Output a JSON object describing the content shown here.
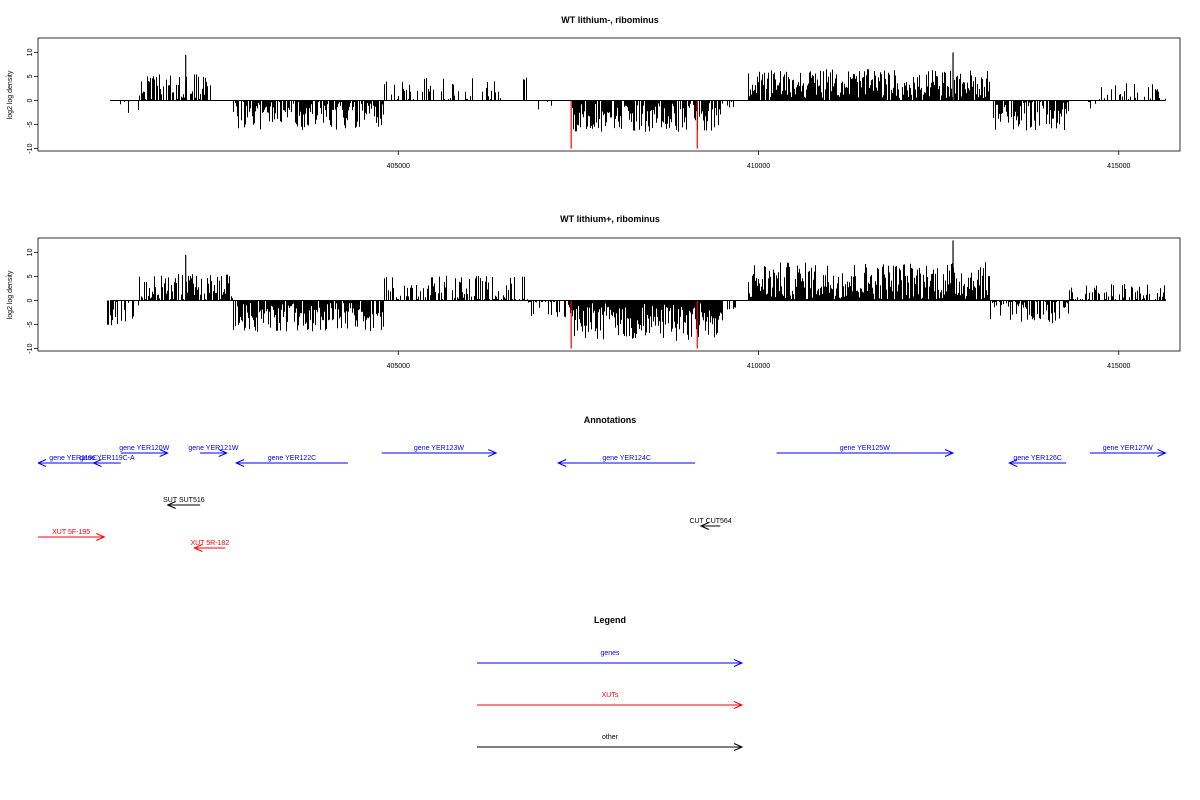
{
  "chart_data": [
    {
      "type": "bar",
      "title": "WT lithium-, ribominus",
      "ylabel": "log2 log density",
      "xlim": [
        400000,
        415850
      ],
      "ylim": [
        -10.5,
        13
      ],
      "x_ticks": [
        405000,
        410000,
        415000
      ],
      "y_ticks": [
        -10,
        -5,
        0,
        5,
        10
      ],
      "segments": [
        {
          "start": 400950,
          "end": 401400,
          "sign": -1,
          "mean": 1.2,
          "amp": 1.5,
          "density": 0.2
        },
        {
          "start": 401400,
          "end": 402400,
          "sign": 1,
          "mean": 2.5,
          "amp": 3,
          "density": 0.7
        },
        {
          "start": 402700,
          "end": 404800,
          "sign": -1,
          "mean": 3.2,
          "amp": 3,
          "density": 0.8
        },
        {
          "start": 404800,
          "end": 406800,
          "sign": 1,
          "mean": 1.8,
          "amp": 3,
          "density": 0.4
        },
        {
          "start": 406800,
          "end": 407400,
          "sign": -1,
          "mean": 1.0,
          "amp": 1.5,
          "density": 0.15
        },
        {
          "start": 407400,
          "end": 409500,
          "sign": -1,
          "mean": 3.5,
          "amp": 3,
          "density": 0.85
        },
        {
          "start": 409500,
          "end": 409850,
          "sign": -1,
          "mean": 0.8,
          "amp": 1,
          "density": 0.1
        },
        {
          "start": 409850,
          "end": 413200,
          "sign": 1,
          "mean": 3.5,
          "amp": 3,
          "density": 0.95
        },
        {
          "start": 413250,
          "end": 414300,
          "sign": -1,
          "mean": 3.2,
          "amp": 3,
          "density": 0.75
        },
        {
          "start": 414300,
          "end": 414700,
          "sign": -1,
          "mean": 0.7,
          "amp": 1,
          "density": 0.1
        },
        {
          "start": 414700,
          "end": 415650,
          "sign": 1,
          "mean": 1.8,
          "amp": 2,
          "density": 0.4
        }
      ],
      "spikes": [
        {
          "x": 402050,
          "y": 9.5,
          "color": "#000000"
        },
        {
          "x": 412700,
          "y": 10,
          "color": "#000000"
        },
        {
          "x": 407400,
          "y": -10,
          "color": "#ff0000"
        },
        {
          "x": 409150,
          "y": -10,
          "color": "#ff0000"
        }
      ],
      "baseline_range": [
        401000,
        415650
      ]
    },
    {
      "type": "bar",
      "title": "WT lithium+, ribominus",
      "ylabel": "log2 log density",
      "xlim": [
        400000,
        415850
      ],
      "ylim": [
        -10.5,
        13
      ],
      "x_ticks": [
        405000,
        410000,
        415000
      ],
      "y_ticks": [
        -10,
        -5,
        0,
        5,
        10
      ],
      "segments": [
        {
          "start": 400950,
          "end": 401400,
          "sign": -1,
          "mean": 2.5,
          "amp": 3,
          "density": 0.6
        },
        {
          "start": 401400,
          "end": 402700,
          "sign": 1,
          "mean": 2.5,
          "amp": 3,
          "density": 0.75
        },
        {
          "start": 402700,
          "end": 404800,
          "sign": -1,
          "mean": 3.5,
          "amp": 3,
          "density": 0.9
        },
        {
          "start": 404800,
          "end": 406800,
          "sign": 1,
          "mean": 2.3,
          "amp": 3,
          "density": 0.7
        },
        {
          "start": 406800,
          "end": 407400,
          "sign": -1,
          "mean": 1.5,
          "amp": 2,
          "density": 0.4
        },
        {
          "start": 407400,
          "end": 409500,
          "sign": -1,
          "mean": 4.5,
          "amp": 4,
          "density": 1.0
        },
        {
          "start": 409500,
          "end": 409850,
          "sign": -1,
          "mean": 1.0,
          "amp": 1,
          "density": 0.2
        },
        {
          "start": 409850,
          "end": 413200,
          "sign": 1,
          "mean": 4.0,
          "amp": 4,
          "density": 1.0
        },
        {
          "start": 413200,
          "end": 414300,
          "sign": -1,
          "mean": 2.0,
          "amp": 3,
          "density": 0.7
        },
        {
          "start": 414300,
          "end": 415650,
          "sign": 1,
          "mean": 1.5,
          "amp": 2,
          "density": 0.5
        }
      ],
      "spikes": [
        {
          "x": 402050,
          "y": 9.5,
          "color": "#000000"
        },
        {
          "x": 412700,
          "y": 12.5,
          "color": "#000000"
        },
        {
          "x": 407400,
          "y": -10,
          "color": "#ff0000"
        },
        {
          "x": 409150,
          "y": -10,
          "color": "#ff0000"
        }
      ],
      "baseline_range": [
        401000,
        415650
      ]
    }
  ],
  "annotations": {
    "title": "Annotations",
    "xlim": [
      400000,
      415850
    ],
    "features": [
      {
        "label": "gene YER119C",
        "start": 400000,
        "end": 400980,
        "strand": "-",
        "color": "#0000ff",
        "row": 1
      },
      {
        "label": "gene YER119C-A",
        "start": 400770,
        "end": 401150,
        "strand": "-",
        "color": "#0000ff",
        "row": 1
      },
      {
        "label": "gene YER120W",
        "start": 401150,
        "end": 401800,
        "strand": "+",
        "color": "#0000ff",
        "row": 0
      },
      {
        "label": "gene YER121W",
        "start": 402250,
        "end": 402620,
        "strand": "+",
        "color": "#0000ff",
        "row": 0
      },
      {
        "label": "gene YER122C",
        "start": 402750,
        "end": 404300,
        "strand": "-",
        "color": "#0000ff",
        "row": 1
      },
      {
        "label": "gene YER123W",
        "start": 404770,
        "end": 406360,
        "strand": "+",
        "color": "#0000ff",
        "row": 0
      },
      {
        "label": "gene YER124C",
        "start": 407220,
        "end": 409120,
        "strand": "-",
        "color": "#0000ff",
        "row": 1
      },
      {
        "label": "gene YER125W",
        "start": 410250,
        "end": 412700,
        "strand": "+",
        "color": "#0000ff",
        "row": 0
      },
      {
        "label": "gene YER126C",
        "start": 413480,
        "end": 414270,
        "strand": "-",
        "color": "#0000ff",
        "row": 1
      },
      {
        "label": "gene YER127W",
        "start": 414600,
        "end": 415650,
        "strand": "+",
        "color": "#0000ff",
        "row": 0
      },
      {
        "label": "SUT SUT516",
        "start": 401800,
        "end": 402250,
        "strand": "-",
        "color": "#000000",
        "row": 3
      },
      {
        "label": "CUT CUT564",
        "start": 409200,
        "end": 409470,
        "strand": "-",
        "color": "#000000",
        "row": 4
      },
      {
        "label": "XUT 5F-195",
        "start": 400000,
        "end": 400920,
        "strand": "+",
        "color": "#ff0000",
        "row": 5
      },
      {
        "label": "XUT 5R-182",
        "start": 402170,
        "end": 402600,
        "strand": "-",
        "color": "#ff0000",
        "row": 6
      }
    ]
  },
  "legend": {
    "title": "Legend",
    "items": [
      {
        "label": "genes",
        "color": "#0000ff"
      },
      {
        "label": "XUTs",
        "color": "#ff0000"
      },
      {
        "label": "other",
        "color": "#000000"
      }
    ]
  }
}
